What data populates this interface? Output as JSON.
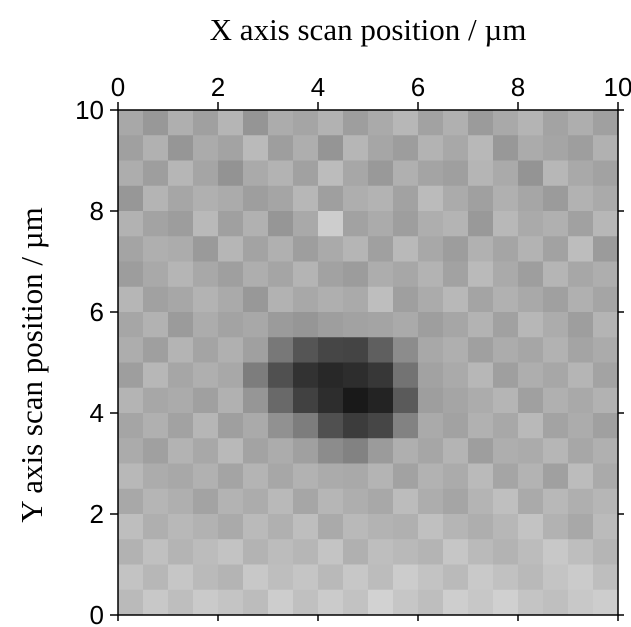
{
  "chart_data": {
    "type": "heatmap",
    "xlabel": "X axis scan position / µm",
    "ylabel": "Y axis scan position / µm",
    "xlim": [
      0,
      10
    ],
    "ylim": [
      0,
      10
    ],
    "xticks": [
      0,
      2,
      4,
      6,
      8,
      10
    ],
    "yticks": [
      0,
      2,
      4,
      6,
      8,
      10
    ],
    "colormap": "gray",
    "x": [
      0.25,
      0.75,
      1.25,
      1.75,
      2.25,
      2.75,
      3.25,
      3.75,
      4.25,
      4.75,
      5.25,
      5.75,
      6.25,
      6.75,
      7.25,
      7.75,
      8.25,
      8.75,
      9.25,
      9.75
    ],
    "y": [
      9.75,
      9.25,
      8.75,
      8.25,
      7.75,
      7.25,
      6.75,
      6.25,
      5.75,
      5.25,
      4.75,
      4.25,
      3.75,
      3.25,
      2.75,
      2.25,
      1.75,
      1.25,
      0.75,
      0.25
    ],
    "z": [
      [
        168,
        152,
        175,
        160,
        181,
        149,
        172,
        165,
        178,
        158,
        170,
        183,
        162,
        176,
        155,
        169,
        180,
        163,
        174,
        160
      ],
      [
        160,
        177,
        150,
        171,
        163,
        186,
        158,
        174,
        149,
        182,
        166,
        157,
        179,
        168,
        184,
        152,
        171,
        165,
        158,
        177
      ],
      [
        173,
        158,
        182,
        165,
        147,
        170,
        179,
        161,
        188,
        167,
        153,
        176,
        164,
        159,
        181,
        170,
        148,
        183,
        169,
        162
      ],
      [
        151,
        180,
        166,
        176,
        171,
        158,
        165,
        183,
        159,
        174,
        179,
        162,
        187,
        171,
        160,
        176,
        166,
        155,
        178,
        170
      ],
      [
        178,
        163,
        157,
        185,
        160,
        177,
        150,
        169,
        205,
        162,
        171,
        158,
        174,
        180,
        153,
        184,
        170,
        176,
        161,
        183
      ],
      [
        164,
        175,
        172,
        154,
        182,
        163,
        176,
        158,
        170,
        181,
        160,
        185,
        168,
        157,
        177,
        165,
        179,
        162,
        189,
        155
      ],
      [
        157,
        169,
        181,
        168,
        159,
        174,
        165,
        180,
        162,
        156,
        173,
        167,
        179,
        162,
        186,
        170,
        158,
        181,
        167,
        174
      ],
      [
        182,
        161,
        167,
        179,
        170,
        152,
        178,
        168,
        175,
        170,
        190,
        159,
        171,
        184,
        164,
        177,
        169,
        160,
        176,
        165
      ],
      [
        166,
        178,
        155,
        172,
        163,
        168,
        155,
        150,
        158,
        162,
        164,
        170,
        158,
        166,
        179,
        161,
        183,
        172,
        158,
        180
      ],
      [
        173,
        159,
        180,
        164,
        176,
        160,
        120,
        85,
        70,
        68,
        95,
        140,
        168,
        175,
        160,
        172,
        166,
        178,
        164,
        171
      ],
      [
        158,
        183,
        166,
        175,
        168,
        125,
        80,
        50,
        40,
        45,
        55,
        115,
        162,
        170,
        183,
        159,
        174,
        167,
        181,
        163
      ],
      [
        180,
        167,
        171,
        160,
        177,
        150,
        105,
        65,
        45,
        25,
        35,
        90,
        158,
        165,
        172,
        181,
        160,
        176,
        169,
        178
      ],
      [
        165,
        176,
        162,
        182,
        159,
        170,
        145,
        125,
        80,
        60,
        70,
        130,
        170,
        162,
        177,
        168,
        185,
        163,
        172,
        160
      ],
      [
        171,
        160,
        179,
        168,
        185,
        163,
        172,
        160,
        140,
        130,
        155,
        175,
        166,
        180,
        158,
        174,
        171,
        182,
        167,
        176
      ],
      [
        184,
        172,
        168,
        177,
        164,
        180,
        167,
        178,
        171,
        169,
        180,
        162,
        178,
        171,
        186,
        165,
        179,
        160,
        188,
        170
      ],
      [
        168,
        181,
        175,
        163,
        179,
        172,
        185,
        166,
        182,
        174,
        168,
        188,
        173,
        165,
        180,
        191,
        170,
        184,
        175,
        182
      ],
      [
        190,
        175,
        184,
        178,
        170,
        186,
        176,
        190,
        170,
        185,
        179,
        176,
        192,
        181,
        174,
        183,
        195,
        178,
        168,
        187
      ],
      [
        178,
        192,
        180,
        188,
        195,
        179,
        188,
        182,
        196,
        176,
        190,
        185,
        180,
        198,
        186,
        179,
        188,
        200,
        190,
        181
      ],
      [
        195,
        183,
        198,
        186,
        180,
        200,
        190,
        197,
        185,
        199,
        188,
        204,
        195,
        186,
        201,
        193,
        185,
        196,
        203,
        190
      ],
      [
        186,
        200,
        190,
        202,
        196,
        188,
        205,
        192,
        203,
        194,
        210,
        198,
        190,
        206,
        199,
        208,
        196,
        191,
        200,
        205
      ]
    ]
  }
}
